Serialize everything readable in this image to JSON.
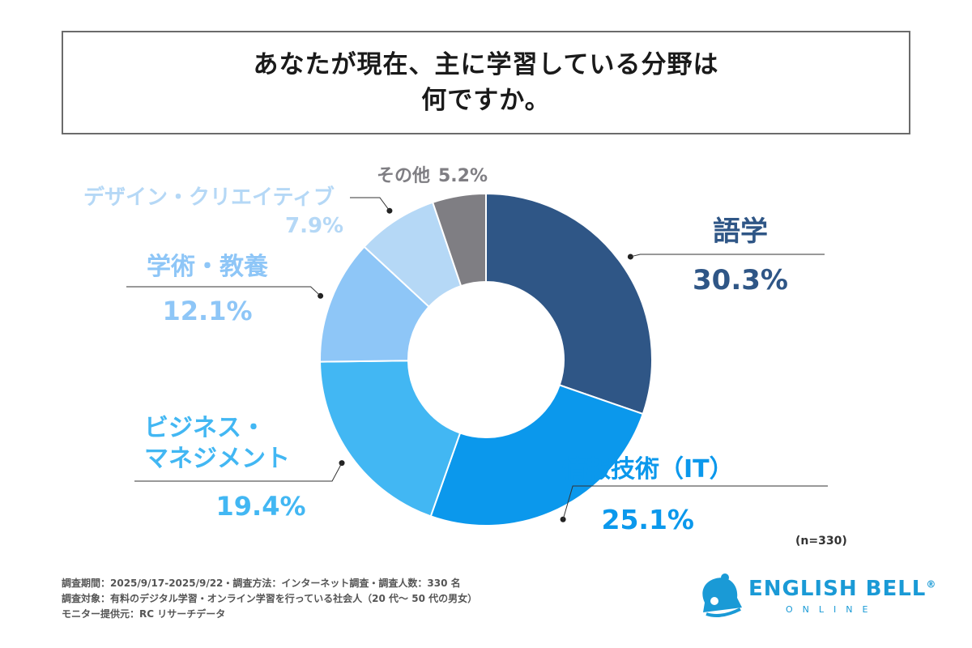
{
  "title": {
    "line1": "あなたが現在、主に学習している分野は",
    "line2": "何ですか。"
  },
  "chart_data": {
    "type": "donut",
    "categories": [
      "語学",
      "情報技術（IT）",
      "ビジネス・マネジメント",
      "学術・教養",
      "デザイン・クリエイティブ",
      "その他"
    ],
    "values": [
      30.3,
      25.1,
      19.4,
      12.1,
      7.9,
      5.2
    ],
    "value_labels": [
      "30.3%",
      "25.1%",
      "19.4%",
      "12.1%",
      "7.9%",
      "5.2%"
    ],
    "label_lines": [
      [
        "語学"
      ],
      [
        "情報技術（IT）"
      ],
      [
        "ビジネス・",
        "マネジメント"
      ],
      [
        "学術・教養"
      ],
      [
        "デザイン・クリエイティブ"
      ],
      [
        "その他"
      ]
    ],
    "colors": [
      "#2f5686",
      "#0b98ec",
      "#42b7f3",
      "#8ec6f7",
      "#b5d8f6",
      "#7f7e83"
    ],
    "unit": "%"
  },
  "sample_note": "(n=330)",
  "footer": [
    "調査期間：2025/9/17-2025/9/22・調査方法：インターネット調査・調査人数：330 名",
    "調査対象：有料のデジタル学習・オンライン学習を行っている社会人（20 代～ 50 代の男女）",
    "モニター提供元：RC リサーチデータ"
  ],
  "logo": {
    "name": "ENGLISH BELL",
    "mark": "®",
    "sub": "ONLINE",
    "icon": "bell-icon",
    "color": "#1a9ad6"
  }
}
